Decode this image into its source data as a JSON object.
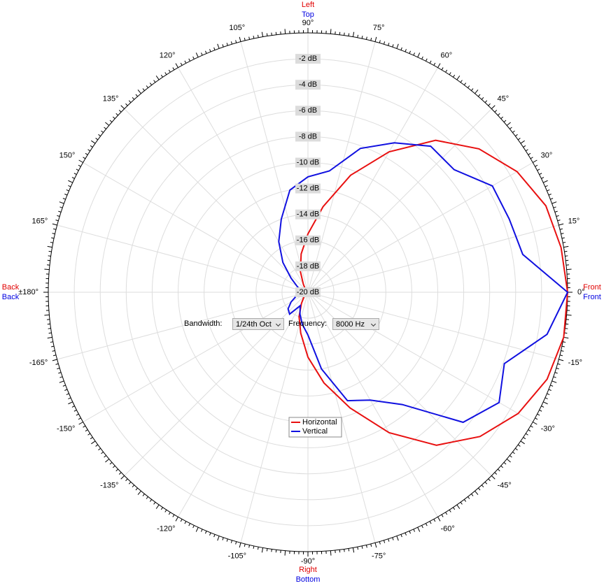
{
  "chart_data": {
    "type": "polar",
    "rlim": [
      -20,
      0
    ],
    "rticks": [
      {
        "value": -2,
        "label": "-2 dB"
      },
      {
        "value": -4,
        "label": "-4 dB"
      },
      {
        "value": -6,
        "label": "-6 dB"
      },
      {
        "value": -8,
        "label": "-8 dB"
      },
      {
        "value": -10,
        "label": "-10 dB"
      },
      {
        "value": -12,
        "label": "-12 dB"
      },
      {
        "value": -14,
        "label": "-14 dB"
      },
      {
        "value": -16,
        "label": "-16 dB"
      },
      {
        "value": -18,
        "label": "-18 dB"
      },
      {
        "value": -20,
        "label": "-20 dB"
      }
    ],
    "thetaticks": [
      {
        "value": 0,
        "label": "0°"
      },
      {
        "value": 15,
        "label": "15°"
      },
      {
        "value": 30,
        "label": "30°"
      },
      {
        "value": 45,
        "label": "45°"
      },
      {
        "value": 60,
        "label": "60°"
      },
      {
        "value": 75,
        "label": "75°"
      },
      {
        "value": 90,
        "label": "90°"
      },
      {
        "value": 105,
        "label": "105°"
      },
      {
        "value": 120,
        "label": "120°"
      },
      {
        "value": 135,
        "label": "135°"
      },
      {
        "value": 150,
        "label": "150°"
      },
      {
        "value": 165,
        "label": "165°"
      },
      {
        "value": 180,
        "label": "±180°"
      },
      {
        "value": -165,
        "label": "-165°"
      },
      {
        "value": -150,
        "label": "-150°"
      },
      {
        "value": -135,
        "label": "-135°"
      },
      {
        "value": -120,
        "label": "-120°"
      },
      {
        "value": -105,
        "label": "-105°"
      },
      {
        "value": -90,
        "label": "-90°"
      },
      {
        "value": -75,
        "label": "-75°"
      },
      {
        "value": -60,
        "label": "-60°"
      },
      {
        "value": -45,
        "label": "-45°"
      },
      {
        "value": -30,
        "label": "-30°"
      },
      {
        "value": -15,
        "label": "-15°"
      }
    ],
    "direction_labels": {
      "top": [
        {
          "text": "Left",
          "color": "#e00000"
        },
        {
          "text": "Top",
          "color": "#0000e0"
        }
      ],
      "bottom": [
        {
          "text": "Right",
          "color": "#e00000"
        },
        {
          "text": "Bottom",
          "color": "#0000e0"
        }
      ],
      "left": [
        {
          "text": "Back",
          "color": "#e00000"
        },
        {
          "text": "Back",
          "color": "#0000e0"
        }
      ],
      "right": [
        {
          "text": "Front",
          "color": "#e00000"
        },
        {
          "text": "Front",
          "color": "#0000e0"
        }
      ]
    },
    "x": [
      -180,
      -170,
      -160,
      -150,
      -140,
      -130,
      -120,
      -110,
      -100,
      -90,
      -80,
      -70,
      -60,
      -50,
      -40,
      -30,
      -20,
      -10,
      0,
      10,
      20,
      30,
      40,
      50,
      60,
      70,
      80,
      90,
      100,
      110,
      120,
      130,
      140,
      150,
      160,
      170,
      180
    ],
    "series": [
      {
        "name": "Horizontal",
        "color": "#e81010",
        "values": [
          -20,
          -20,
          -20,
          -20,
          -19.8,
          -19.5,
          -19,
          -18,
          -16.8,
          -15,
          -12.9,
          -10.5,
          -7.5,
          -4.6,
          -2.7,
          -1.3,
          -0.4,
          0,
          0,
          -0.2,
          -0.5,
          -1.4,
          -2.8,
          -4.7,
          -7.5,
          -10.4,
          -13.3,
          -15.5,
          -17,
          -18.3,
          -19.3,
          -19.7,
          -20,
          -20,
          -20,
          -20,
          -20
        ]
      },
      {
        "name": "Vertical",
        "color": "#1010e0",
        "values": [
          -19.3,
          -19.5,
          -19,
          -18.5,
          -18,
          -17.8,
          -18.8,
          -18.2,
          -17.5,
          -16.7,
          -14,
          -11.1,
          -10.4,
          -8.7,
          -4.4,
          -3,
          -3.9,
          -1.3,
          0,
          -3.2,
          -3.5,
          -3.6,
          -5.3,
          -5.3,
          -6.7,
          -8.2,
          -10.5,
          -11.1,
          -12,
          -14,
          -15.5,
          -17,
          -18.3,
          -19,
          -19.3,
          -19.5,
          -19.3
        ]
      }
    ],
    "legend": "bottom-center"
  },
  "controls": {
    "bandwidth": {
      "label": "Bandwidth:",
      "value": "1/24th Oct"
    },
    "frequency": {
      "label": "Frequency:",
      "value": "8000 Hz"
    }
  }
}
